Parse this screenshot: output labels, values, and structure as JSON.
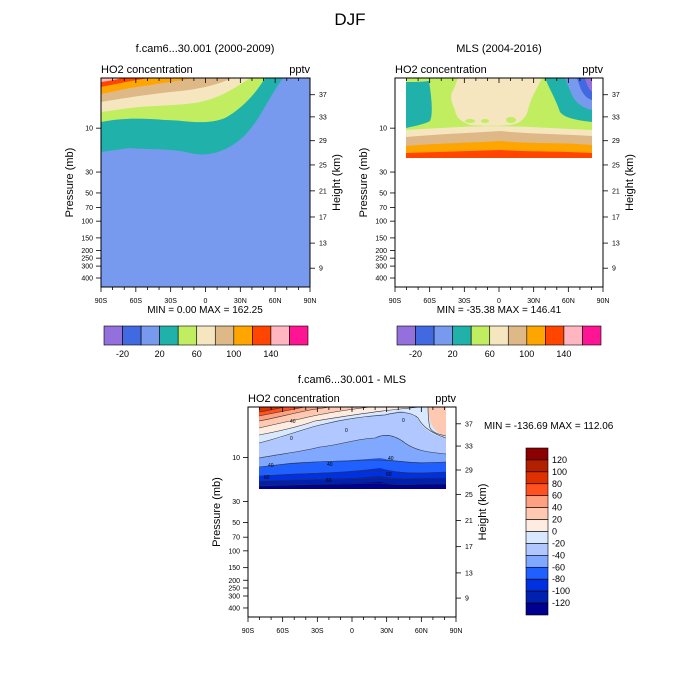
{
  "page_title": "DJF",
  "chart_data": [
    {
      "type": "heatmap",
      "id": "model",
      "title": "f.cam6...30.001 (2000-2009)",
      "left_string": "HO2 concentration",
      "right_string": "pptv",
      "xlabel": "",
      "ylabel": "Pressure (mb)",
      "ylabel_right": "Height (km)",
      "x_ticks": [
        "90S",
        "60S",
        "30S",
        "0",
        "30N",
        "60N",
        "90N"
      ],
      "xlim": [
        -90,
        90
      ],
      "y_ticks": [
        "10",
        "30",
        "50",
        "70",
        "100",
        "150",
        "200",
        "250",
        "300",
        "400"
      ],
      "y_ticks_right": [
        "37",
        "33",
        "29",
        "25",
        "21",
        "17",
        "13",
        "9"
      ],
      "min_max": "MIN =   0.00  MAX = 162.25",
      "levels": [
        -20,
        0,
        20,
        40,
        60,
        80,
        100,
        120,
        140,
        160
      ],
      "colorbar_labels": [
        "-20",
        "20",
        "60",
        "100",
        "140"
      ],
      "colors": [
        "#9370db",
        "#4169e1",
        "#7799ee",
        "#20b2aa",
        "#c0ee60",
        "#f5e6c0",
        "#deb887",
        "#ffa500",
        "#ff4500",
        "#ffb6c1",
        "#ff1493"
      ]
    },
    {
      "type": "heatmap",
      "id": "mls",
      "title": "MLS (2004-2016)",
      "left_string": "HO2 concentration",
      "right_string": "pptv",
      "xlabel": "",
      "ylabel": "Pressure (mb)",
      "ylabel_right": "Height (km)",
      "x_ticks": [
        "90S",
        "60S",
        "30S",
        "0",
        "30N",
        "60N",
        "90N"
      ],
      "xlim": [
        -90,
        90
      ],
      "y_ticks": [
        "10",
        "30",
        "50",
        "70",
        "100",
        "150",
        "200",
        "250",
        "300",
        "400"
      ],
      "y_ticks_right": [
        "37",
        "33",
        "29",
        "25",
        "21",
        "17",
        "13",
        "9"
      ],
      "min_max": "MIN = -35.38  MAX = 146.41",
      "levels": [
        -20,
        0,
        20,
        40,
        60,
        80,
        100,
        120,
        140,
        160
      ],
      "colorbar_labels": [
        "-20",
        "20",
        "60",
        "100",
        "140"
      ],
      "colors": [
        "#9370db",
        "#4169e1",
        "#7799ee",
        "#20b2aa",
        "#c0ee60",
        "#f5e6c0",
        "#deb887",
        "#ffa500",
        "#ff4500",
        "#ffb6c1",
        "#ff1493"
      ]
    },
    {
      "type": "heatmap",
      "id": "diff",
      "title": "f.cam6...30.001 - MLS",
      "left_string": "HO2 concentration",
      "right_string": "pptv",
      "xlabel": "",
      "ylabel": "Pressure (mb)",
      "ylabel_right": "Height (km)",
      "x_ticks": [
        "90S",
        "60S",
        "30S",
        "0",
        "30N",
        "60N",
        "90N"
      ],
      "xlim": [
        -90,
        90
      ],
      "y_ticks": [
        "10",
        "30",
        "50",
        "70",
        "100",
        "150",
        "200",
        "250",
        "300",
        "400"
      ],
      "y_ticks_right": [
        "37",
        "33",
        "29",
        "25",
        "21",
        "17",
        "13",
        "9"
      ],
      "min_max": "MIN = -136.69  MAX = 112.06",
      "levels": [
        -120,
        -100,
        -80,
        -60,
        -40,
        -20,
        0,
        20,
        40,
        60,
        80,
        100,
        120
      ],
      "colorbar_labels": [
        "120",
        "100",
        "80",
        "60",
        "40",
        "20",
        "0",
        "-20",
        "-40",
        "-60",
        "-80",
        "-100",
        "-120"
      ],
      "colors": [
        "#8b0000",
        "#b22000",
        "#e03000",
        "#ff5020",
        "#ffa080",
        "#ffc8b0",
        "#ffece0",
        "#d8e8ff",
        "#b0c8ff",
        "#80a8ff",
        "#2060ff",
        "#0030e0",
        "#0020b0",
        "#000090"
      ],
      "contour_labels": [
        "40",
        "0",
        "0",
        "0",
        "40",
        "40",
        "40",
        "60",
        "60",
        "60"
      ]
    }
  ]
}
